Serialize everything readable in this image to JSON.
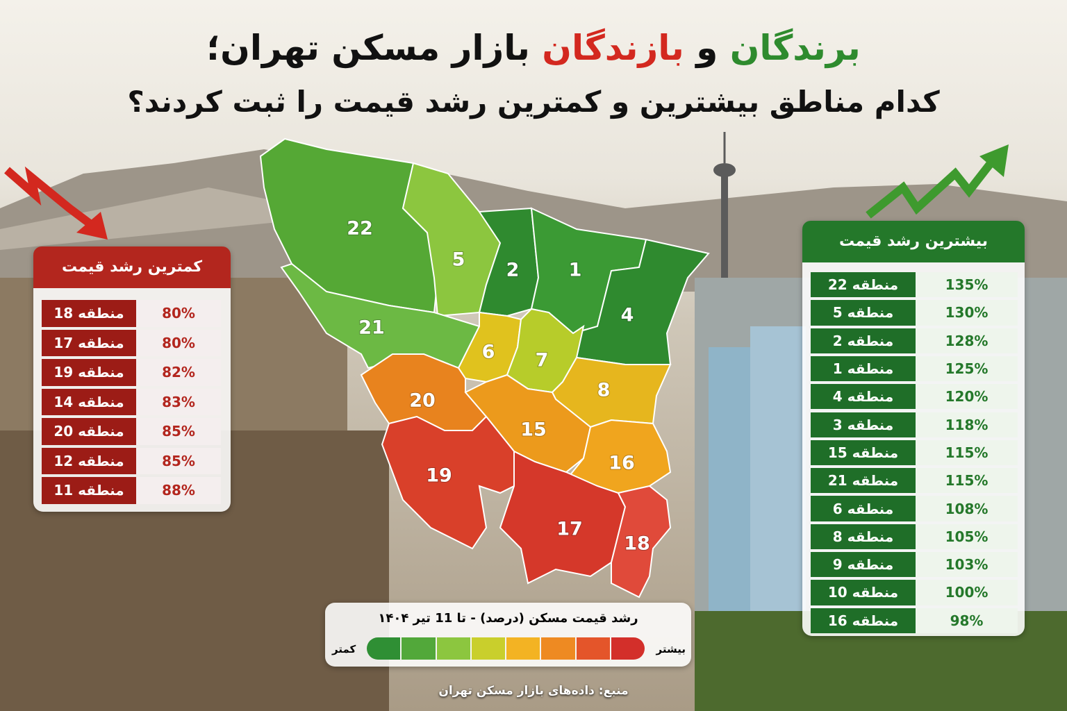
{
  "header": {
    "title": {
      "part1": "برندگان",
      "part2": "و",
      "part3": "بازندگان",
      "part4": "بازار مسکن تهران؛"
    },
    "subtitle": "کدام مناطق بیشترین و کمترین رشد قیمت را ثبت کردند؟"
  },
  "lowest": {
    "title": "کمترین رشد قیمت",
    "rows": [
      [
        "منطقه 18",
        "80%"
      ],
      [
        "منطقه 17",
        "80%"
      ],
      [
        "منطقه 19",
        "82%"
      ],
      [
        "منطقه 14",
        "83%"
      ],
      [
        "منطقه 20",
        "85%"
      ],
      [
        "منطقه 12",
        "85%"
      ],
      [
        "منطقه 11",
        "88%"
      ]
    ]
  },
  "highest": {
    "title": "بیشترین رشد قیمت",
    "rows": [
      [
        "منطقه 22",
        "135%"
      ],
      [
        "منطقه 5",
        "130%"
      ],
      [
        "منطقه 2",
        "128%"
      ],
      [
        "منطقه 1",
        "125%"
      ],
      [
        "منطقه 4",
        "120%"
      ],
      [
        "منطقه 3",
        "118%"
      ],
      [
        "منطقه 15",
        "115%"
      ],
      [
        "منطقه 21",
        "115%"
      ],
      [
        "منطقه 6",
        "108%"
      ],
      [
        "منطقه 8",
        "105%"
      ],
      [
        "منطقه 9",
        "103%"
      ],
      [
        "منطقه 10",
        "100%"
      ],
      [
        "منطقه 16",
        "98%"
      ]
    ]
  },
  "map": {
    "regions": [
      {
        "label": "22",
        "color": "#55a835"
      },
      {
        "label": "5",
        "color": "#8cc63f"
      },
      {
        "label": "2",
        "color": "#2f8a2f"
      },
      {
        "label": "1",
        "color": "#3b9a34"
      },
      {
        "label": "4",
        "color": "#2f8a2f"
      },
      {
        "label": "21",
        "color": "#6cb944"
      },
      {
        "label": "6",
        "color": "#e0c21e"
      },
      {
        "label": "7",
        "color": "#b7cc2a"
      },
      {
        "label": "8",
        "color": "#e6b61e"
      },
      {
        "label": "20",
        "color": "#e8831e"
      },
      {
        "label": "15",
        "color": "#ec9a1c"
      },
      {
        "label": "16",
        "color": "#f0a51e"
      },
      {
        "label": "19",
        "color": "#d9402a"
      },
      {
        "label": "17",
        "color": "#d5382a"
      },
      {
        "label": "18",
        "color": "#e04a3a"
      }
    ]
  },
  "legend": {
    "title": "رشد قیمت مسکن (درصد) - تا 11 تیر ۱۴۰۴",
    "more": "بیشتر",
    "less": "کمتر",
    "colors": [
      "#d32f2a",
      "#e4552a",
      "#ee8a22",
      "#f3b323",
      "#c9cf2c",
      "#8cc63f",
      "#52a83a",
      "#2f8f34"
    ]
  },
  "source": "منبع: داده‌های بازار مسکن تهران"
}
